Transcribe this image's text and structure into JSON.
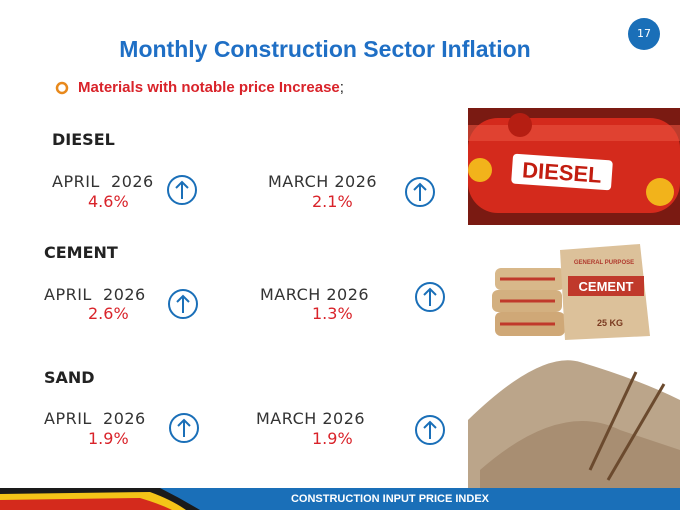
{
  "page_number": "17",
  "title": "Monthly Construction Sector Inflation",
  "bullet": {
    "text": "Materials with notable price Increase",
    "punctuation": ";"
  },
  "materials": [
    {
      "name": "DIESEL",
      "current": {
        "period": "APRIL  2026",
        "value": "4.6%"
      },
      "previous": {
        "period": "MARCH 2026",
        "value": "2.1%"
      }
    },
    {
      "name": "CEMENT",
      "current": {
        "period": "APRIL  2026",
        "value": "2.6%"
      },
      "previous": {
        "period": "MARCH 2026",
        "value": "1.3%"
      }
    },
    {
      "name": "SAND",
      "current": {
        "period": "APRIL  2026",
        "value": "1.9%"
      },
      "previous": {
        "period": "MARCH 2026",
        "value": "1.9%"
      }
    }
  ],
  "images": {
    "diesel_tank": "DIESEL",
    "cement_bag": {
      "top": "GENERAL PURPOSE",
      "label": "CEMENT",
      "weight": "25 KG"
    }
  },
  "footer": "CONSTRUCTION INPUT PRICE INDEX"
}
